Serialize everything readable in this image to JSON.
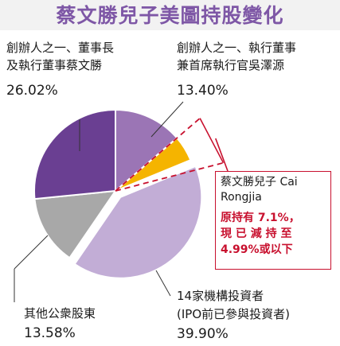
{
  "title": "蔡文勝兒子美圖持股變化",
  "chart_data": {
    "type": "pie",
    "slices": [
      {
        "label_lines": [
          "創辦人之一、執行董事",
          "兼首席執行官吳澤源"
        ],
        "value": 13.4,
        "value_text": "13.40%",
        "color": "#9b75b5"
      },
      {
        "label_lines": [
          "蔡文勝兒子 Cai",
          "Rongjia"
        ],
        "value": 4.99,
        "value_text": "",
        "color": "#f5b400"
      },
      {
        "label_lines": [
          "14家機構投資者",
          "(IPO前已參與投資者)"
        ],
        "value": 39.9,
        "value_text": "39.90%",
        "color": "#c2add6"
      },
      {
        "label_lines": [
          "其他公衆股東"
        ],
        "value": 13.58,
        "value_text": "13.58%",
        "color": "#a8a8a8"
      },
      {
        "label_lines": [
          "創辦人之一、董事長",
          "及執行董事蔡文勝"
        ],
        "value": 26.02,
        "value_text": "26.02%",
        "color": "#6a3f92"
      }
    ],
    "callout": {
      "title_lines": [
        "蔡文勝兒子 Cai",
        "Rongjia"
      ],
      "note_lines": [
        "原持有 7.1%，",
        "現 已 減 持 至",
        "4.99%或以下"
      ],
      "previous_value": 7.1,
      "current_value": 4.99
    }
  }
}
